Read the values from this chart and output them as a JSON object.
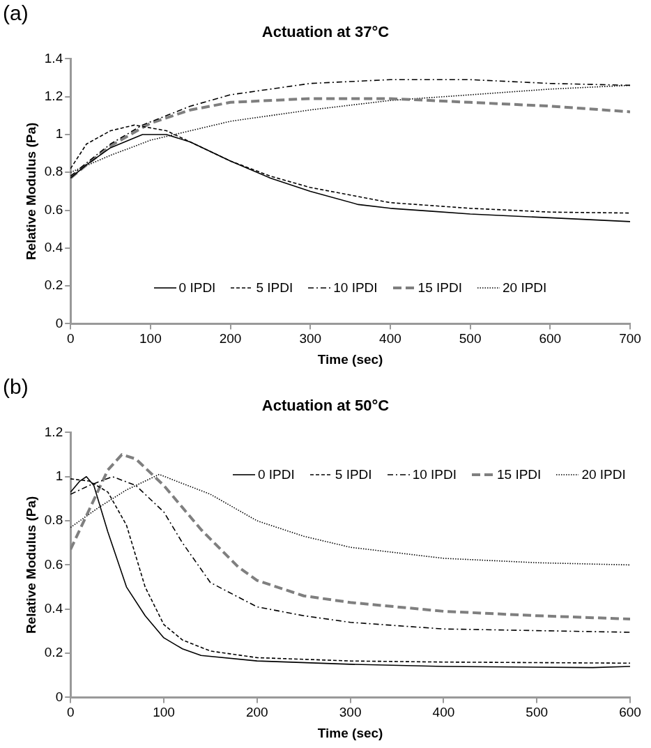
{
  "chart_data": [
    {
      "type": "line",
      "title": "Actuation at 37°C",
      "xlabel": "Time (sec)",
      "ylabel": "Relative Modulus (Pa)",
      "annotations": [
        "(a)"
      ],
      "xlim": [
        0,
        700
      ],
      "xticks": [
        0,
        100,
        200,
        300,
        400,
        500,
        600,
        700
      ],
      "ylim": [
        0,
        1.4
      ],
      "yticks": [
        0,
        0.2,
        0.4,
        0.6,
        0.8,
        1,
        1.2,
        1.4
      ],
      "grid": false,
      "legend": "bottom",
      "marker": "none",
      "series": [
        {
          "name": "0 IPDI",
          "color": "#000000",
          "line_style": "solid",
          "x": [
            0,
            20,
            50,
            90,
            120,
            150,
            200,
            250,
            300,
            360,
            400,
            450,
            500,
            600,
            700
          ],
          "values": [
            0.77,
            0.84,
            0.93,
            1.0,
            1.0,
            0.96,
            0.86,
            0.77,
            0.7,
            0.63,
            0.61,
            0.595,
            0.58,
            0.56,
            0.54
          ]
        },
        {
          "name": "5 IPDI",
          "color": "#000000",
          "line_style": "dashed",
          "x": [
            0,
            20,
            50,
            80,
            120,
            150,
            200,
            250,
            300,
            400,
            500,
            600,
            700
          ],
          "values": [
            0.82,
            0.95,
            1.02,
            1.05,
            1.02,
            0.96,
            0.86,
            0.78,
            0.72,
            0.64,
            0.61,
            0.59,
            0.585
          ]
        },
        {
          "name": "10 IPDI",
          "color": "#000000",
          "line_style": "dashdot",
          "x": [
            0,
            20,
            50,
            90,
            150,
            200,
            300,
            400,
            500,
            600,
            700
          ],
          "values": [
            0.78,
            0.85,
            0.95,
            1.05,
            1.15,
            1.21,
            1.27,
            1.29,
            1.29,
            1.27,
            1.26
          ]
        },
        {
          "name": "15 IPDI",
          "color": "#7f7f7f",
          "line_style": "longdash",
          "x": [
            0,
            20,
            50,
            100,
            150,
            200,
            300,
            400,
            500,
            600,
            700
          ],
          "values": [
            0.77,
            0.84,
            0.94,
            1.06,
            1.13,
            1.17,
            1.19,
            1.19,
            1.17,
            1.15,
            1.12
          ]
        },
        {
          "name": "20 IPDI",
          "color": "#000000",
          "line_style": "dotted",
          "x": [
            0,
            50,
            100,
            200,
            300,
            400,
            500,
            600,
            700
          ],
          "values": [
            0.8,
            0.89,
            0.97,
            1.07,
            1.13,
            1.18,
            1.21,
            1.24,
            1.26
          ]
        }
      ]
    },
    {
      "type": "line",
      "title": "Actuation at 50°C",
      "xlabel": "Time (sec)",
      "ylabel": "Relative Modulus (Pa)",
      "annotations": [
        "(b)"
      ],
      "xlim": [
        0,
        600
      ],
      "xticks": [
        0,
        100,
        200,
        300,
        400,
        500,
        600
      ],
      "ylim": [
        0,
        1.2
      ],
      "yticks": [
        0,
        0.2,
        0.4,
        0.6,
        0.8,
        1,
        1.2
      ],
      "grid": false,
      "legend": "top right",
      "marker": "none",
      "series": [
        {
          "name": "0 IPDI",
          "color": "#000000",
          "line_style": "solid",
          "x": [
            0,
            10,
            17,
            25,
            40,
            60,
            80,
            100,
            120,
            140,
            200,
            300,
            400,
            560,
            600
          ],
          "values": [
            0.93,
            0.98,
            1.0,
            0.96,
            0.75,
            0.5,
            0.37,
            0.27,
            0.22,
            0.19,
            0.165,
            0.15,
            0.14,
            0.135,
            0.14
          ]
        },
        {
          "name": "5 IPDI",
          "color": "#000000",
          "line_style": "dashed",
          "x": [
            0,
            20,
            40,
            60,
            80,
            100,
            120,
            150,
            200,
            300,
            400,
            600
          ],
          "values": [
            0.99,
            0.98,
            0.93,
            0.78,
            0.5,
            0.33,
            0.26,
            0.21,
            0.18,
            0.165,
            0.16,
            0.155
          ]
        },
        {
          "name": "10 IPDI",
          "color": "#000000",
          "line_style": "dashdot",
          "x": [
            0,
            20,
            45,
            70,
            100,
            120,
            150,
            200,
            250,
            300,
            400,
            600
          ],
          "values": [
            0.92,
            0.96,
            1.0,
            0.96,
            0.84,
            0.7,
            0.52,
            0.41,
            0.37,
            0.34,
            0.31,
            0.295
          ]
        },
        {
          "name": "15 IPDI",
          "color": "#7f7f7f",
          "line_style": "longdash",
          "x": [
            0,
            20,
            40,
            55,
            70,
            100,
            140,
            180,
            200,
            250,
            300,
            400,
            500,
            600
          ],
          "values": [
            0.67,
            0.85,
            1.03,
            1.1,
            1.08,
            0.96,
            0.76,
            0.59,
            0.53,
            0.46,
            0.43,
            0.39,
            0.37,
            0.355
          ]
        },
        {
          "name": "20 IPDI",
          "color": "#000000",
          "line_style": "dotted",
          "x": [
            0,
            30,
            60,
            95,
            150,
            200,
            250,
            300,
            400,
            500,
            600
          ],
          "values": [
            0.77,
            0.86,
            0.94,
            1.01,
            0.92,
            0.8,
            0.73,
            0.68,
            0.63,
            0.61,
            0.6
          ]
        }
      ]
    }
  ]
}
